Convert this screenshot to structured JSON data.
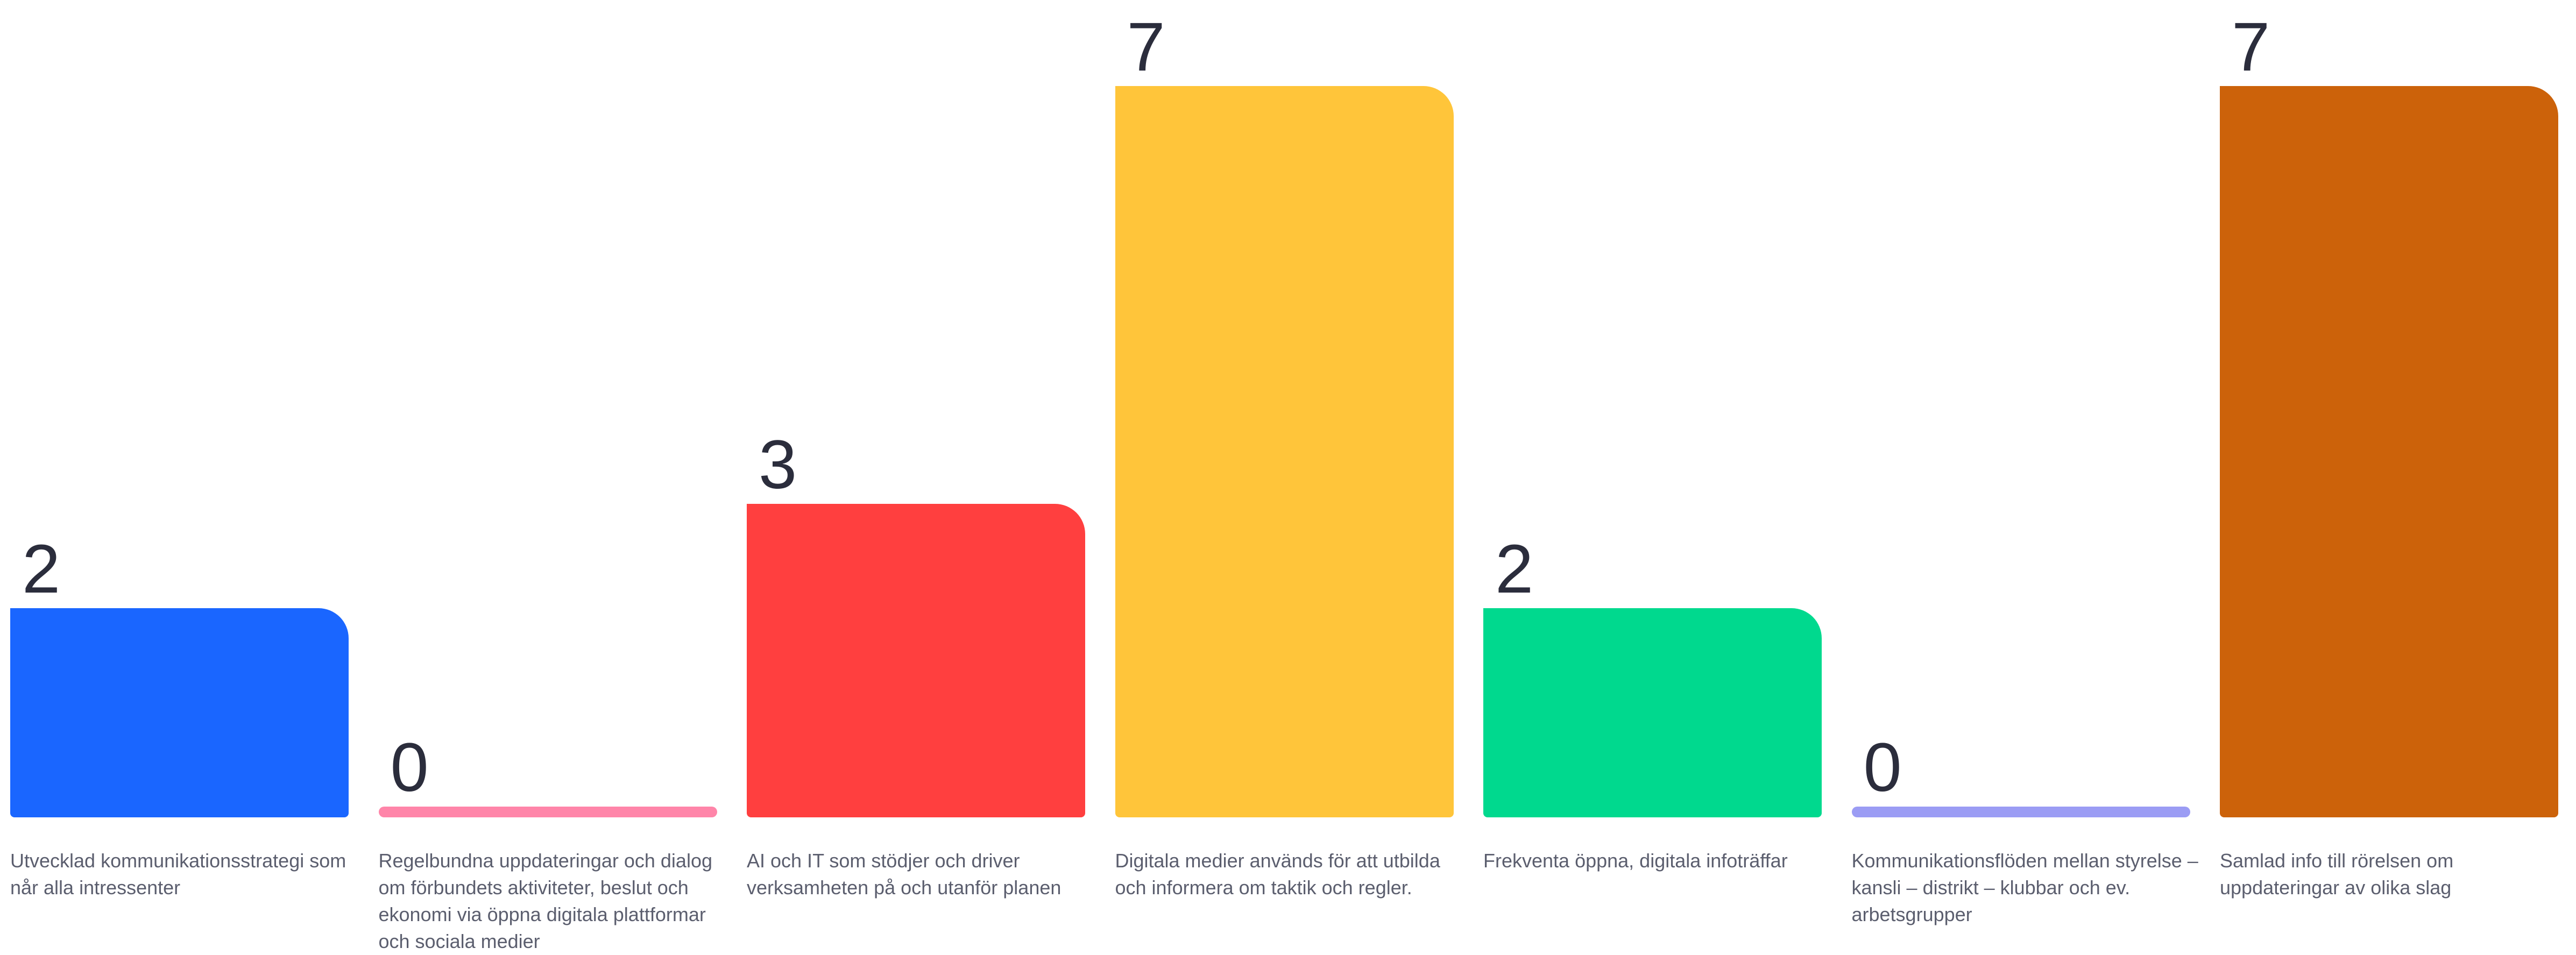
{
  "chart_data": {
    "type": "bar",
    "categories": [
      "Utvecklad kommunikationsstrategi som når alla intressenter",
      "Regelbundna uppdateringar och dialog om förbundets aktiviteter, beslut och ekonomi via öppna digitala plattformar och sociala medier",
      "AI och IT som stödjer och driver verksamheten på och utanför planen",
      "Digitala medier används för att utbilda och informera om taktik och regler.",
      "Frekventa öppna, digitala infoträffar",
      "Kommunikationsflöden mellan styrelse – kansli – distrikt – klubbar och ev. arbetsgrupper",
      "Samlad info till rörelsen om uppdateringar av olika slag"
    ],
    "values": [
      2,
      0,
      3,
      7,
      2,
      0,
      7
    ],
    "value_labels": [
      "2",
      "0",
      "3",
      "7",
      "2",
      "0",
      "7"
    ],
    "colors": [
      "#1a66ff",
      "#ff85a9",
      "#ff3f3f",
      "#ffc53a",
      "#00d98e",
      "#9b9cf4",
      "#cc620a"
    ],
    "ylim": [
      0,
      7
    ],
    "grid": false,
    "legend": "none"
  }
}
